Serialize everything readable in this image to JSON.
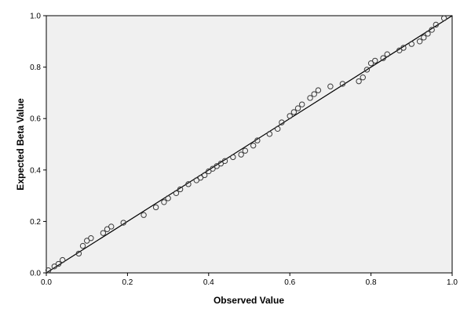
{
  "chart_data": {
    "type": "scatter",
    "title": "",
    "xlabel": "Observed Value",
    "ylabel": "Expected Beta Value",
    "xlim": [
      0,
      1
    ],
    "ylim": [
      0,
      1
    ],
    "x_ticks": [
      "0.0",
      "0.2",
      "0.4",
      "0.6",
      "0.8",
      "1.0"
    ],
    "y_ticks": [
      "0.0",
      "0.2",
      "0.4",
      "0.6",
      "0.8",
      "1.0"
    ],
    "grid": false,
    "legend": "none",
    "reference_line": {
      "type": "identity",
      "from": [
        0,
        0
      ],
      "to": [
        1,
        1
      ]
    },
    "colors": {
      "plot_background": "#f0f0f0",
      "marker": "#3a3a3a",
      "line": "#000000"
    },
    "points": [
      [
        0.005,
        0.01
      ],
      [
        0.02,
        0.025
      ],
      [
        0.03,
        0.035
      ],
      [
        0.04,
        0.05
      ],
      [
        0.08,
        0.075
      ],
      [
        0.09,
        0.105
      ],
      [
        0.1,
        0.125
      ],
      [
        0.11,
        0.135
      ],
      [
        0.14,
        0.155
      ],
      [
        0.15,
        0.17
      ],
      [
        0.16,
        0.18
      ],
      [
        0.19,
        0.195
      ],
      [
        0.24,
        0.225
      ],
      [
        0.27,
        0.255
      ],
      [
        0.29,
        0.275
      ],
      [
        0.3,
        0.29
      ],
      [
        0.32,
        0.31
      ],
      [
        0.33,
        0.325
      ],
      [
        0.35,
        0.345
      ],
      [
        0.37,
        0.36
      ],
      [
        0.38,
        0.37
      ],
      [
        0.39,
        0.38
      ],
      [
        0.4,
        0.395
      ],
      [
        0.41,
        0.405
      ],
      [
        0.42,
        0.415
      ],
      [
        0.43,
        0.425
      ],
      [
        0.44,
        0.435
      ],
      [
        0.46,
        0.45
      ],
      [
        0.48,
        0.46
      ],
      [
        0.49,
        0.475
      ],
      [
        0.51,
        0.495
      ],
      [
        0.52,
        0.515
      ],
      [
        0.55,
        0.54
      ],
      [
        0.57,
        0.56
      ],
      [
        0.58,
        0.585
      ],
      [
        0.6,
        0.61
      ],
      [
        0.61,
        0.625
      ],
      [
        0.62,
        0.64
      ],
      [
        0.63,
        0.655
      ],
      [
        0.65,
        0.68
      ],
      [
        0.66,
        0.695
      ],
      [
        0.67,
        0.71
      ],
      [
        0.7,
        0.725
      ],
      [
        0.73,
        0.735
      ],
      [
        0.77,
        0.745
      ],
      [
        0.78,
        0.76
      ],
      [
        0.79,
        0.79
      ],
      [
        0.8,
        0.815
      ],
      [
        0.81,
        0.825
      ],
      [
        0.83,
        0.835
      ],
      [
        0.84,
        0.85
      ],
      [
        0.87,
        0.865
      ],
      [
        0.88,
        0.875
      ],
      [
        0.9,
        0.89
      ],
      [
        0.92,
        0.9
      ],
      [
        0.93,
        0.915
      ],
      [
        0.94,
        0.93
      ],
      [
        0.95,
        0.945
      ],
      [
        0.96,
        0.965
      ],
      [
        0.98,
        0.99
      ]
    ]
  }
}
